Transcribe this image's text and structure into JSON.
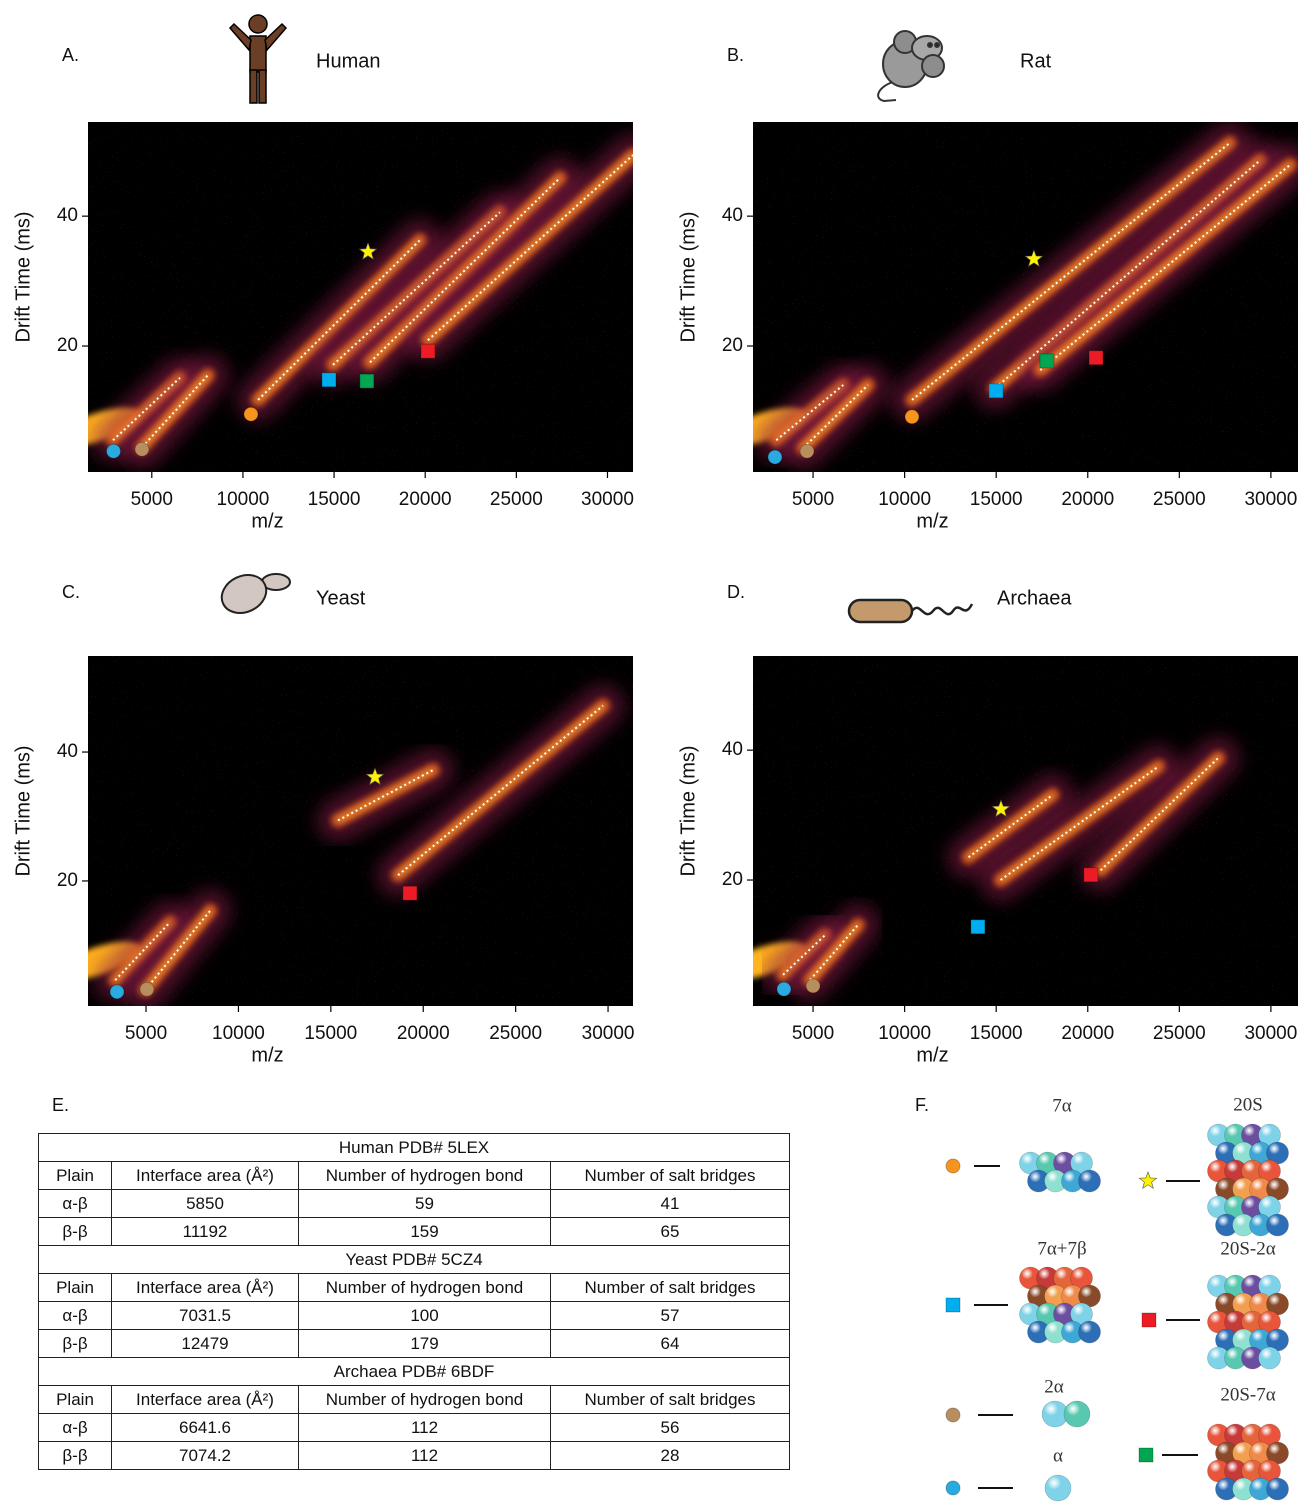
{
  "chart_data": [
    {
      "type": "scatter",
      "label": "A.",
      "title": "Human",
      "xlabel": "m/z",
      "ylabel": "Drift Time (ms)",
      "xlim": [
        1500,
        31400
      ],
      "ylim": [
        0.6,
        54.5
      ],
      "xticks": [
        5000,
        10000,
        15000,
        20000,
        25000,
        30000
      ],
      "yticks": [
        20,
        40
      ],
      "series": [
        {
          "marker": "circle",
          "color": "#29abe2",
          "x": [
            2900
          ],
          "values": [
            3.8
          ]
        },
        {
          "marker": "circle",
          "color": "#b98e5f",
          "x": [
            4460
          ],
          "values": [
            4.1
          ]
        },
        {
          "marker": "circle",
          "color": "#f7941d",
          "x": [
            10440
          ],
          "values": [
            9.5
          ]
        },
        {
          "marker": "square",
          "color": "#00aeef",
          "x": [
            14720
          ],
          "values": [
            14.8
          ]
        },
        {
          "marker": "square",
          "color": "#00a651",
          "x": [
            16800
          ],
          "values": [
            14.6
          ]
        },
        {
          "marker": "square",
          "color": "#ed1c24",
          "x": [
            20150
          ],
          "values": [
            19.2
          ]
        },
        {
          "marker": "star",
          "color": "#fff200",
          "x": [
            16860
          ],
          "values": [
            34.5
          ]
        }
      ],
      "fits": [
        {
          "x": [
            2870,
            6550
          ],
          "values": [
            5.5,
            15.1
          ]
        },
        {
          "x": [
            4460,
            8080
          ],
          "values": [
            4.4,
            15.5
          ]
        },
        {
          "x": [
            10830,
            19710
          ],
          "values": [
            11.7,
            36.3
          ]
        },
        {
          "x": [
            14940,
            24100
          ],
          "values": [
            17.1,
            40.6
          ]
        },
        {
          "x": [
            16970,
            27400
          ],
          "values": [
            17.5,
            45.9
          ]
        },
        {
          "x": [
            20150,
            31400
          ],
          "values": [
            20.9,
            49.4
          ]
        }
      ]
    },
    {
      "type": "scatter",
      "label": "B.",
      "title": "Rat",
      "xlabel": "m/z",
      "ylabel": "Drift Time (ms)",
      "xlim": [
        1720,
        31480
      ],
      "ylim": [
        0.6,
        54.5
      ],
      "xticks": [
        5000,
        10000,
        15000,
        20000,
        25000,
        30000
      ],
      "yticks": [
        20,
        40
      ],
      "series": [
        {
          "marker": "circle",
          "color": "#29abe2",
          "x": [
            2920
          ],
          "values": [
            2.9
          ]
        },
        {
          "marker": "circle",
          "color": "#b98e5f",
          "x": [
            4670
          ],
          "values": [
            3.8
          ]
        },
        {
          "marker": "circle",
          "color": "#f7941d",
          "x": [
            10400
          ],
          "values": [
            9.1
          ]
        },
        {
          "marker": "square",
          "color": "#00aeef",
          "x": [
            14990
          ],
          "values": [
            13.1
          ]
        },
        {
          "marker": "square",
          "color": "#00a651",
          "x": [
            17770
          ],
          "values": [
            17.7
          ]
        },
        {
          "marker": "square",
          "color": "#ed1c24",
          "x": [
            20450
          ],
          "values": [
            18.2
          ]
        },
        {
          "marker": "star",
          "color": "#fff200",
          "x": [
            17060
          ],
          "values": [
            33.4
          ]
        }
      ],
      "fits": [
        {
          "x": [
            2990,
            6650
          ],
          "values": [
            5.5,
            14.0
          ]
        },
        {
          "x": [
            4460,
            8000
          ],
          "values": [
            4.3,
            14.0
          ]
        },
        {
          "x": [
            10400,
            27760
          ],
          "values": [
            11.7,
            51.3
          ]
        },
        {
          "x": [
            14940,
            29410
          ],
          "values": [
            13.5,
            48.6
          ]
        },
        {
          "x": [
            17400,
            31050
          ],
          "values": [
            16.3,
            47.9
          ]
        }
      ]
    },
    {
      "type": "scatter",
      "label": "C.",
      "title": "Yeast",
      "xlabel": "m/z",
      "ylabel": "Drift Time (ms)",
      "xlim": [
        1860,
        31350
      ],
      "ylim": [
        0.6,
        54.9
      ],
      "xticks": [
        5000,
        10000,
        15000,
        20000,
        25000,
        30000
      ],
      "yticks": [
        20,
        40
      ],
      "series": [
        {
          "marker": "circle",
          "color": "#29abe2",
          "x": [
            3430
          ],
          "values": [
            2.8
          ]
        },
        {
          "marker": "circle",
          "color": "#b98e5f",
          "x": [
            5050
          ],
          "values": [
            3.2
          ]
        },
        {
          "marker": "square",
          "color": "#ed1c24",
          "x": [
            19280
          ],
          "values": [
            18.1
          ]
        },
        {
          "marker": "star",
          "color": "#fff200",
          "x": [
            17390
          ],
          "values": [
            36.1
          ]
        }
      ],
      "fits": [
        {
          "x": [
            3330,
            6300
          ],
          "values": [
            4.6,
            13.6
          ]
        },
        {
          "x": [
            4960,
            8480
          ],
          "values": [
            3.1,
            15.4
          ]
        },
        {
          "x": [
            15390,
            20530
          ],
          "values": [
            29.4,
            37.2
          ]
        },
        {
          "x": [
            18640,
            29730
          ],
          "values": [
            20.9,
            47.2
          ]
        }
      ]
    },
    {
      "type": "scatter",
      "label": "D.",
      "title": "Archaea",
      "xlabel": "m/z",
      "ylabel": "Drift Time (ms)",
      "xlim": [
        1720,
        31480
      ],
      "ylim": [
        0.6,
        54.5
      ],
      "xticks": [
        5000,
        10000,
        15000,
        20000,
        25000,
        30000
      ],
      "yticks": [
        20,
        40
      ],
      "series": [
        {
          "marker": "circle",
          "color": "#29abe2",
          "x": [
            3410
          ],
          "values": [
            3.2
          ]
        },
        {
          "marker": "circle",
          "color": "#b98e5f",
          "x": [
            5000
          ],
          "values": [
            3.7
          ]
        },
        {
          "marker": "square",
          "color": "#00aeef",
          "x": [
            14000
          ],
          "values": [
            12.8
          ]
        },
        {
          "marker": "square",
          "color": "#ed1c24",
          "x": [
            20170
          ],
          "values": [
            20.8
          ]
        },
        {
          "marker": "star",
          "color": "#fff200",
          "x": [
            15260
          ],
          "values": [
            30.9
          ]
        }
      ],
      "fits": [
        {
          "x": [
            3360,
            5650
          ],
          "values": [
            5.4,
            11.5
          ]
        },
        {
          "x": [
            4830,
            7460
          ],
          "values": [
            4.6,
            13.1
          ]
        },
        {
          "x": [
            13490,
            18080
          ],
          "values": [
            23.5,
            33.1
          ]
        },
        {
          "x": [
            15240,
            23870
          ],
          "values": [
            20.0,
            37.5
          ]
        },
        {
          "x": [
            20700,
            27130
          ],
          "values": [
            21.5,
            38.8
          ]
        }
      ]
    }
  ],
  "table": {
    "label": "E.",
    "columns": [
      "Plain",
      "Interface area (Å²)",
      "Number of hydrogen bond",
      "Number of salt bridges"
    ],
    "sections": [
      {
        "title": "Human PDB# 5LEX",
        "rows": [
          [
            "α-β",
            5850,
            59,
            41
          ],
          [
            "β-β",
            11192,
            159,
            65
          ]
        ]
      },
      {
        "title": "Yeast PDB# 5CZ4",
        "rows": [
          [
            "α-β",
            7031.5,
            100,
            57
          ],
          [
            "β-β",
            12479,
            179,
            64
          ]
        ]
      },
      {
        "title": "Archaea PDB# 6BDF",
        "rows": [
          [
            "α-β",
            6641.6,
            112,
            56
          ],
          [
            "β-β",
            7074.2,
            112,
            28
          ]
        ]
      }
    ]
  },
  "legend": {
    "label": "F.",
    "items": [
      {
        "label": "7α",
        "marker": "circle",
        "color": "#f7941d"
      },
      {
        "label": "20S",
        "marker": "star",
        "color": "#fff200"
      },
      {
        "label": "7α+7β",
        "marker": "square",
        "color": "#00aeef"
      },
      {
        "label": "20S-2α",
        "marker": "square",
        "color": "#ed1c24"
      },
      {
        "label": "2α",
        "marker": "circle",
        "color": "#b98e5f"
      },
      {
        "label": "20S-7α",
        "marker": "square",
        "color": "#00a651"
      },
      {
        "label": "α",
        "marker": "circle",
        "color": "#29abe2"
      }
    ]
  }
}
